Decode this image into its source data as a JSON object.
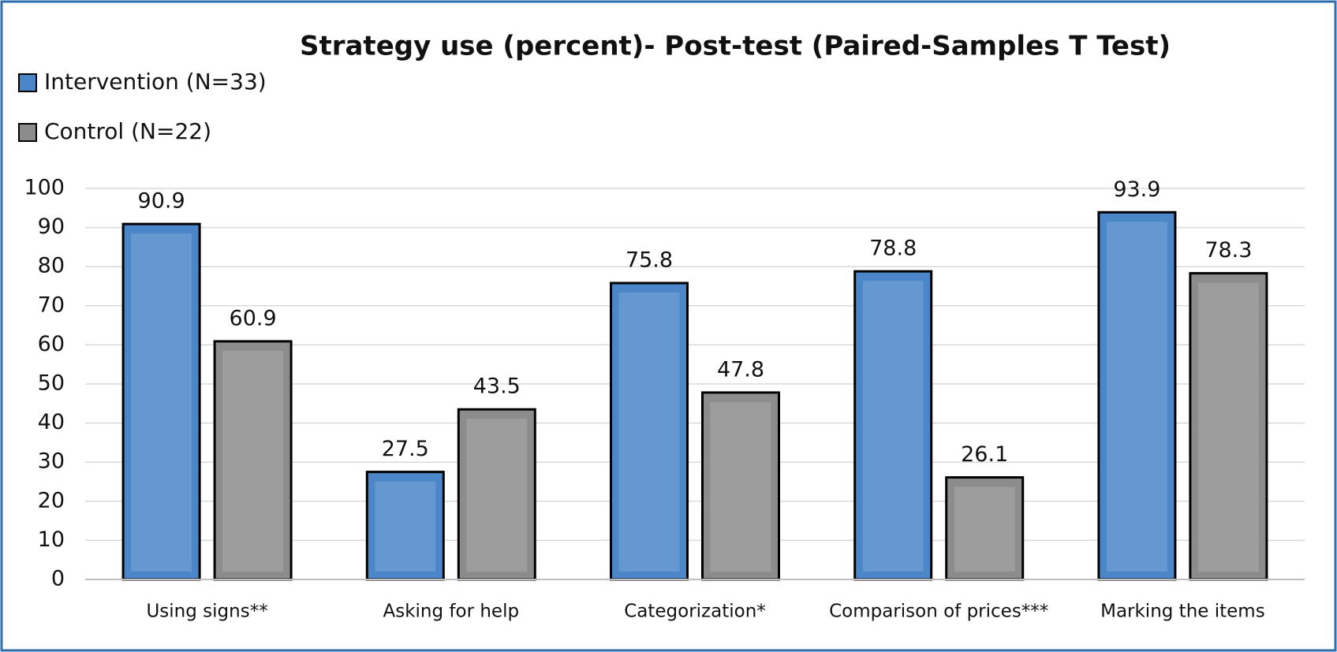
{
  "chart_data": {
    "type": "bar",
    "title": "Strategy use (percent)- Post-test (Paired-Samples T Test)",
    "categories": [
      "Using signs**",
      "Asking for help",
      "Categorization*",
      "Comparison of prices***",
      "Marking the items"
    ],
    "series": [
      {
        "name": "Intervention (N=33)",
        "color": "#4a86c8",
        "values": [
          90.9,
          27.5,
          75.8,
          78.8,
          93.9
        ]
      },
      {
        "name": "Control (N=22)",
        "color": "#8c8c8c",
        "values": [
          60.9,
          43.5,
          47.8,
          26.1,
          78.3
        ]
      }
    ],
    "ylim": [
      0,
      100
    ],
    "yticks": [
      0,
      10,
      20,
      30,
      40,
      50,
      60,
      70,
      80,
      90,
      100
    ],
    "grid": true,
    "legend": "top-left"
  }
}
